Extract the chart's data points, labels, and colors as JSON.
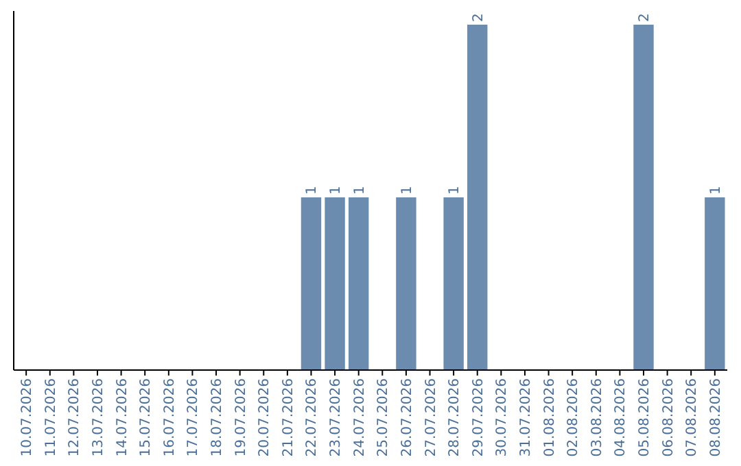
{
  "chart_data": {
    "type": "bar",
    "categories": [
      "10.07.2026",
      "11.07.2026",
      "12.07.2026",
      "13.07.2026",
      "14.07.2026",
      "15.07.2026",
      "16.07.2026",
      "17.07.2026",
      "18.07.2026",
      "19.07.2026",
      "20.07.2026",
      "21.07.2026",
      "22.07.2026",
      "23.07.2026",
      "24.07.2026",
      "25.07.2026",
      "26.07.2026",
      "27.07.2026",
      "28.07.2026",
      "29.07.2026",
      "30.07.2026",
      "31.07.2026",
      "01.08.2026",
      "02.08.2026",
      "03.08.2026",
      "04.08.2026",
      "05.08.2026",
      "06.08.2026",
      "07.08.2026",
      "08.08.2026"
    ],
    "values": [
      null,
      null,
      null,
      null,
      null,
      null,
      null,
      null,
      null,
      null,
      null,
      null,
      1,
      1,
      1,
      null,
      1,
      null,
      1,
      2,
      null,
      null,
      null,
      null,
      null,
      null,
      2,
      null,
      null,
      1
    ],
    "data_labels": true,
    "color": "#6b8cae",
    "ylim": [
      0,
      2
    ],
    "tick_labels": "x"
  }
}
